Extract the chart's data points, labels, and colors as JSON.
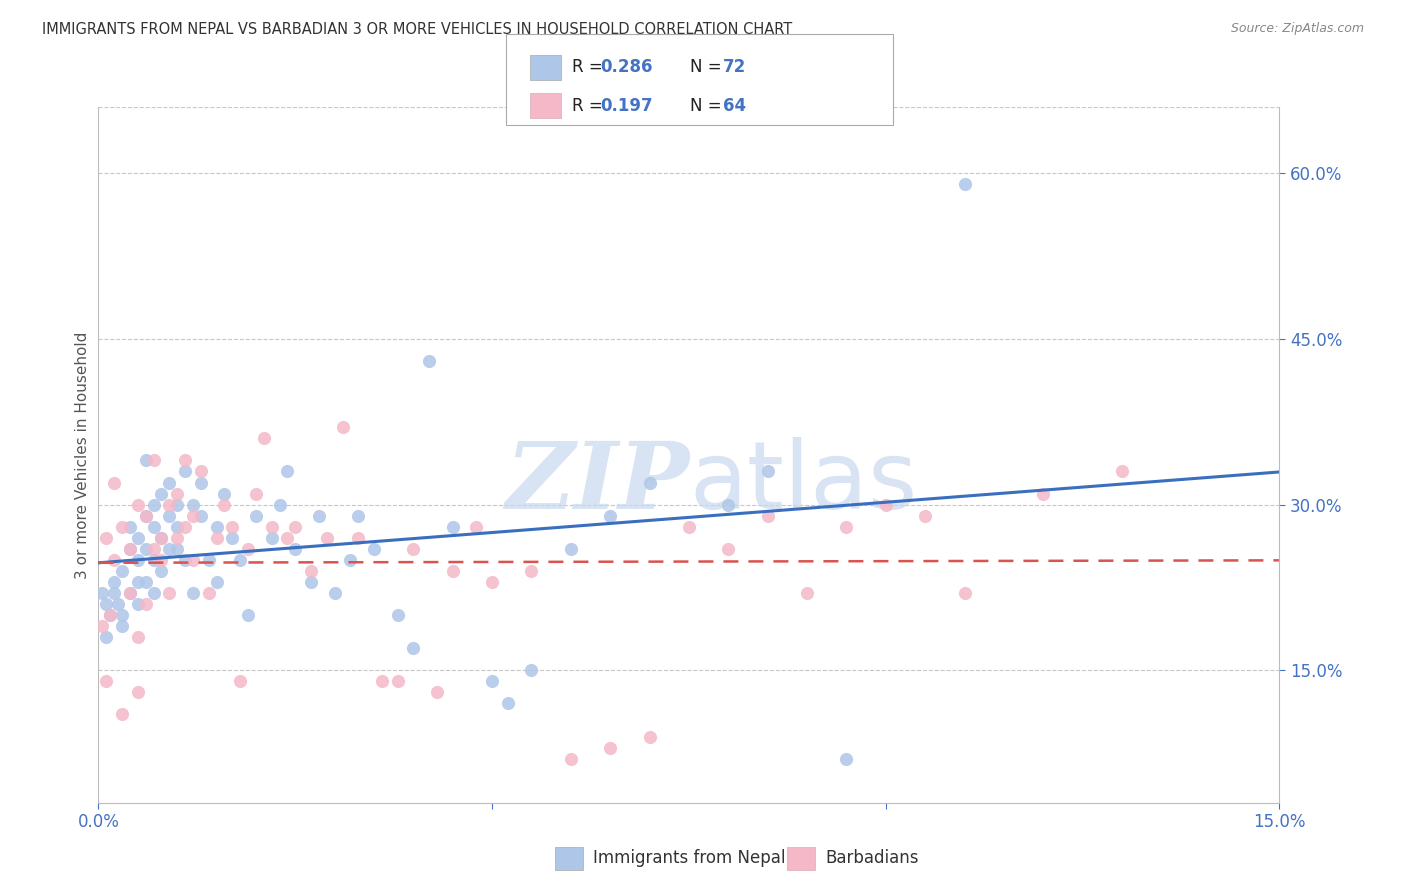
{
  "title": "IMMIGRANTS FROM NEPAL VS BARBADIAN 3 OR MORE VEHICLES IN HOUSEHOLD CORRELATION CHART",
  "source": "Source: ZipAtlas.com",
  "ylabel": "3 or more Vehicles in Household",
  "x_min": 0.0,
  "x_max": 0.15,
  "y_min": 0.03,
  "y_max": 0.66,
  "y_ticks_right": [
    0.15,
    0.3,
    0.45,
    0.6
  ],
  "y_tick_labels_right": [
    "15.0%",
    "30.0%",
    "45.0%",
    "60.0%"
  ],
  "legend_r1": "0.286",
  "legend_n1": "72",
  "legend_r2": "0.197",
  "legend_n2": "64",
  "legend_label1": "Immigrants from Nepal",
  "legend_label2": "Barbadians",
  "blue_color": "#aec6e8",
  "pink_color": "#f4b8c8",
  "blue_line_color": "#3a6fbf",
  "pink_line_color": "#d9534f",
  "watermark_color": "#c8d8ee",
  "background_color": "#ffffff",
  "grid_color": "#c8c8c8",
  "title_color": "#333333",
  "axis_label_color": "#555555",
  "right_axis_color": "#4472c4",
  "bottom_axis_color": "#4472c4",
  "nepal_x": [
    0.0005,
    0.001,
    0.001,
    0.0015,
    0.002,
    0.002,
    0.0025,
    0.003,
    0.003,
    0.003,
    0.004,
    0.004,
    0.004,
    0.005,
    0.005,
    0.005,
    0.005,
    0.006,
    0.006,
    0.006,
    0.006,
    0.007,
    0.007,
    0.007,
    0.007,
    0.008,
    0.008,
    0.008,
    0.009,
    0.009,
    0.009,
    0.01,
    0.01,
    0.01,
    0.011,
    0.011,
    0.012,
    0.012,
    0.013,
    0.013,
    0.014,
    0.015,
    0.015,
    0.016,
    0.017,
    0.018,
    0.019,
    0.02,
    0.022,
    0.023,
    0.024,
    0.025,
    0.027,
    0.028,
    0.03,
    0.032,
    0.033,
    0.035,
    0.038,
    0.04,
    0.042,
    0.045,
    0.05,
    0.052,
    0.055,
    0.06,
    0.065,
    0.07,
    0.08,
    0.085,
    0.095,
    0.11
  ],
  "nepal_y": [
    0.22,
    0.21,
    0.18,
    0.2,
    0.23,
    0.22,
    0.21,
    0.24,
    0.19,
    0.2,
    0.26,
    0.28,
    0.22,
    0.25,
    0.23,
    0.21,
    0.27,
    0.29,
    0.26,
    0.23,
    0.34,
    0.28,
    0.25,
    0.3,
    0.22,
    0.31,
    0.27,
    0.24,
    0.29,
    0.26,
    0.32,
    0.28,
    0.26,
    0.3,
    0.33,
    0.25,
    0.3,
    0.22,
    0.29,
    0.32,
    0.25,
    0.28,
    0.23,
    0.31,
    0.27,
    0.25,
    0.2,
    0.29,
    0.27,
    0.3,
    0.33,
    0.26,
    0.23,
    0.29,
    0.22,
    0.25,
    0.29,
    0.26,
    0.2,
    0.17,
    0.43,
    0.28,
    0.14,
    0.12,
    0.15,
    0.26,
    0.29,
    0.32,
    0.3,
    0.33,
    0.07,
    0.59
  ],
  "barbadian_x": [
    0.0005,
    0.001,
    0.001,
    0.0015,
    0.002,
    0.002,
    0.003,
    0.003,
    0.004,
    0.004,
    0.005,
    0.005,
    0.005,
    0.006,
    0.006,
    0.007,
    0.007,
    0.008,
    0.008,
    0.009,
    0.009,
    0.01,
    0.01,
    0.011,
    0.011,
    0.012,
    0.012,
    0.013,
    0.014,
    0.015,
    0.016,
    0.017,
    0.018,
    0.019,
    0.02,
    0.021,
    0.022,
    0.024,
    0.025,
    0.027,
    0.029,
    0.031,
    0.033,
    0.036,
    0.038,
    0.04,
    0.043,
    0.045,
    0.048,
    0.05,
    0.055,
    0.06,
    0.065,
    0.07,
    0.075,
    0.08,
    0.085,
    0.09,
    0.095,
    0.1,
    0.105,
    0.11,
    0.12,
    0.13
  ],
  "barbadian_y": [
    0.19,
    0.27,
    0.14,
    0.2,
    0.32,
    0.25,
    0.11,
    0.28,
    0.22,
    0.26,
    0.18,
    0.3,
    0.13,
    0.29,
    0.21,
    0.34,
    0.26,
    0.25,
    0.27,
    0.22,
    0.3,
    0.27,
    0.31,
    0.28,
    0.34,
    0.25,
    0.29,
    0.33,
    0.22,
    0.27,
    0.3,
    0.28,
    0.14,
    0.26,
    0.31,
    0.36,
    0.28,
    0.27,
    0.28,
    0.24,
    0.27,
    0.37,
    0.27,
    0.14,
    0.14,
    0.26,
    0.13,
    0.24,
    0.28,
    0.23,
    0.24,
    0.07,
    0.08,
    0.09,
    0.28,
    0.26,
    0.29,
    0.22,
    0.28,
    0.3,
    0.29,
    0.22,
    0.31,
    0.33
  ]
}
